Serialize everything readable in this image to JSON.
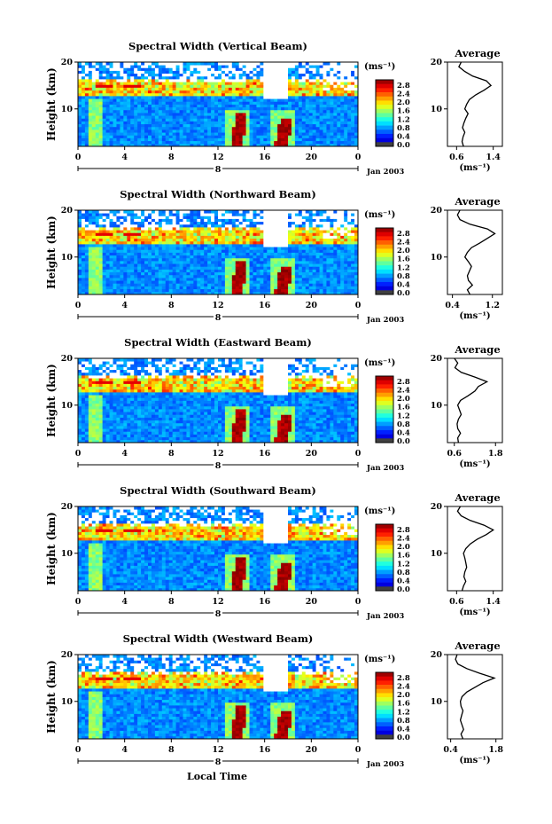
{
  "figure": {
    "shared_xlabel": "Local Time",
    "date_label": "Jan 2003",
    "day_label": "8"
  },
  "chart_data": [
    {
      "type": "heatmap",
      "title": "Spectral Width (Vertical Beam)",
      "ylabel": "Height (km)",
      "x_ticks": [
        "0",
        "4",
        "8",
        "12",
        "16",
        "20",
        "0"
      ],
      "y_ticks": [
        "10",
        "20"
      ],
      "xlim": [
        0,
        24
      ],
      "ylim": [
        2,
        20
      ],
      "colorbar": {
        "unit": "(ms⁻¹)",
        "ticks": [
          "2.8",
          "2.4",
          "2.0",
          "1.6",
          "1.2",
          "0.8",
          "0.4",
          "0.0"
        ]
      },
      "average": {
        "title": "Average",
        "xlabel": "(ms⁻¹)",
        "x_ticks": [
          "0.6",
          "1.4"
        ],
        "xlim": [
          0.4,
          1.6
        ],
        "y_ticks": [
          "10",
          "20"
        ],
        "height": [
          2,
          3,
          4,
          5,
          6,
          7,
          8,
          9,
          10,
          11,
          12,
          13,
          14,
          15,
          16,
          17,
          18,
          19,
          20
        ],
        "value": [
          0.75,
          0.72,
          0.74,
          0.78,
          0.73,
          0.76,
          0.8,
          0.85,
          0.78,
          0.82,
          0.88,
          1.02,
          1.2,
          1.35,
          1.25,
          0.95,
          0.78,
          0.65,
          0.7
        ]
      }
    },
    {
      "type": "heatmap",
      "title": "Spectral Width (Northward Beam)",
      "ylabel": "Height (km)",
      "x_ticks": [
        "0",
        "4",
        "8",
        "12",
        "16",
        "20",
        "0"
      ],
      "y_ticks": [
        "10",
        "20"
      ],
      "xlim": [
        0,
        24
      ],
      "ylim": [
        2,
        20
      ],
      "colorbar": {
        "unit": "(ms⁻¹)",
        "ticks": [
          "2.8",
          "2.4",
          "2.0",
          "1.6",
          "1.2",
          "0.8",
          "0.4",
          "0.0"
        ]
      },
      "average": {
        "title": "Average",
        "xlabel": "(ms⁻¹)",
        "x_ticks": [
          "0.4",
          "1.2"
        ],
        "xlim": [
          0.3,
          1.4
        ],
        "y_ticks": [
          "10",
          "20"
        ],
        "height": [
          2,
          3,
          4,
          5,
          6,
          7,
          8,
          9,
          10,
          11,
          12,
          13,
          14,
          15,
          16,
          17,
          18,
          19,
          20
        ],
        "value": [
          0.75,
          0.7,
          0.8,
          0.72,
          0.7,
          0.74,
          0.78,
          0.72,
          0.65,
          0.7,
          0.78,
          0.95,
          1.1,
          1.25,
          1.1,
          0.75,
          0.55,
          0.5,
          0.55
        ]
      }
    },
    {
      "type": "heatmap",
      "title": "Spectral Width (Eastward Beam)",
      "ylabel": "Height (km)",
      "x_ticks": [
        "0",
        "4",
        "8",
        "12",
        "16",
        "20",
        "0"
      ],
      "y_ticks": [
        "10",
        "20"
      ],
      "xlim": [
        0,
        24
      ],
      "ylim": [
        2,
        20
      ],
      "colorbar": {
        "unit": "(ms⁻¹)",
        "ticks": [
          "2.8",
          "2.4",
          "2.0",
          "1.6",
          "1.2",
          "0.8",
          "0.4",
          "0.0"
        ]
      },
      "average": {
        "title": "Average",
        "xlabel": "(ms⁻¹)",
        "x_ticks": [
          "0.6",
          "1.8"
        ],
        "xlim": [
          0.4,
          2.0
        ],
        "y_ticks": [
          "10",
          "20"
        ],
        "height": [
          2,
          3,
          4,
          5,
          6,
          7,
          8,
          9,
          10,
          11,
          12,
          13,
          14,
          15,
          16,
          17,
          18,
          19,
          20
        ],
        "value": [
          0.72,
          0.7,
          0.78,
          0.7,
          0.68,
          0.72,
          0.8,
          0.75,
          0.7,
          0.78,
          1.0,
          1.2,
          1.3,
          1.55,
          1.2,
          0.8,
          0.62,
          0.7,
          0.6
        ]
      }
    },
    {
      "type": "heatmap",
      "title": "Spectral Width (Southward Beam)",
      "ylabel": "Height (km)",
      "x_ticks": [
        "0",
        "4",
        "8",
        "12",
        "16",
        "20",
        "0"
      ],
      "y_ticks": [
        "10",
        "20"
      ],
      "xlim": [
        0,
        24
      ],
      "ylim": [
        2,
        20
      ],
      "colorbar": {
        "unit": "(ms⁻¹)",
        "ticks": [
          "2.8",
          "2.4",
          "2.0",
          "1.6",
          "1.2",
          "0.8",
          "0.4",
          "0.0"
        ]
      },
      "average": {
        "title": "Average",
        "xlabel": "(ms⁻¹)",
        "x_ticks": [
          "0.6",
          "1.4"
        ],
        "xlim": [
          0.4,
          1.6
        ],
        "y_ticks": [
          "10",
          "20"
        ],
        "height": [
          2,
          3,
          4,
          5,
          6,
          7,
          8,
          9,
          10,
          11,
          12,
          13,
          14,
          15,
          16,
          17,
          18,
          19,
          20
        ],
        "value": [
          0.72,
          0.75,
          0.8,
          0.76,
          0.78,
          0.82,
          0.8,
          0.78,
          0.75,
          0.8,
          0.9,
          1.05,
          1.25,
          1.4,
          1.2,
          0.9,
          0.7,
          0.62,
          0.68
        ]
      }
    },
    {
      "type": "heatmap",
      "title": "Spectral Width (Westward Beam)",
      "ylabel": "Height (km)",
      "x_ticks": [
        "0",
        "4",
        "8",
        "12",
        "16",
        "20",
        "0"
      ],
      "y_ticks": [
        "10",
        "20"
      ],
      "xlim": [
        0,
        24
      ],
      "ylim": [
        2,
        20
      ],
      "colorbar": {
        "unit": "(ms⁻¹)",
        "ticks": [
          "2.8",
          "2.4",
          "2.0",
          "1.6",
          "1.2",
          "0.8",
          "0.4",
          "0.0"
        ]
      },
      "average": {
        "title": "Average",
        "xlabel": "(ms⁻¹)",
        "x_ticks": [
          "0.4",
          "1.8"
        ],
        "xlim": [
          0.3,
          2.0
        ],
        "y_ticks": [
          "10",
          "20"
        ],
        "height": [
          2,
          3,
          4,
          5,
          6,
          7,
          8,
          9,
          10,
          11,
          12,
          13,
          14,
          15,
          16,
          17,
          18,
          19,
          20
        ],
        "value": [
          0.78,
          0.72,
          0.8,
          0.75,
          0.7,
          0.74,
          0.78,
          0.72,
          0.7,
          0.75,
          0.9,
          1.15,
          1.4,
          1.75,
          1.3,
          0.9,
          0.62,
          0.55,
          0.6
        ]
      }
    }
  ]
}
